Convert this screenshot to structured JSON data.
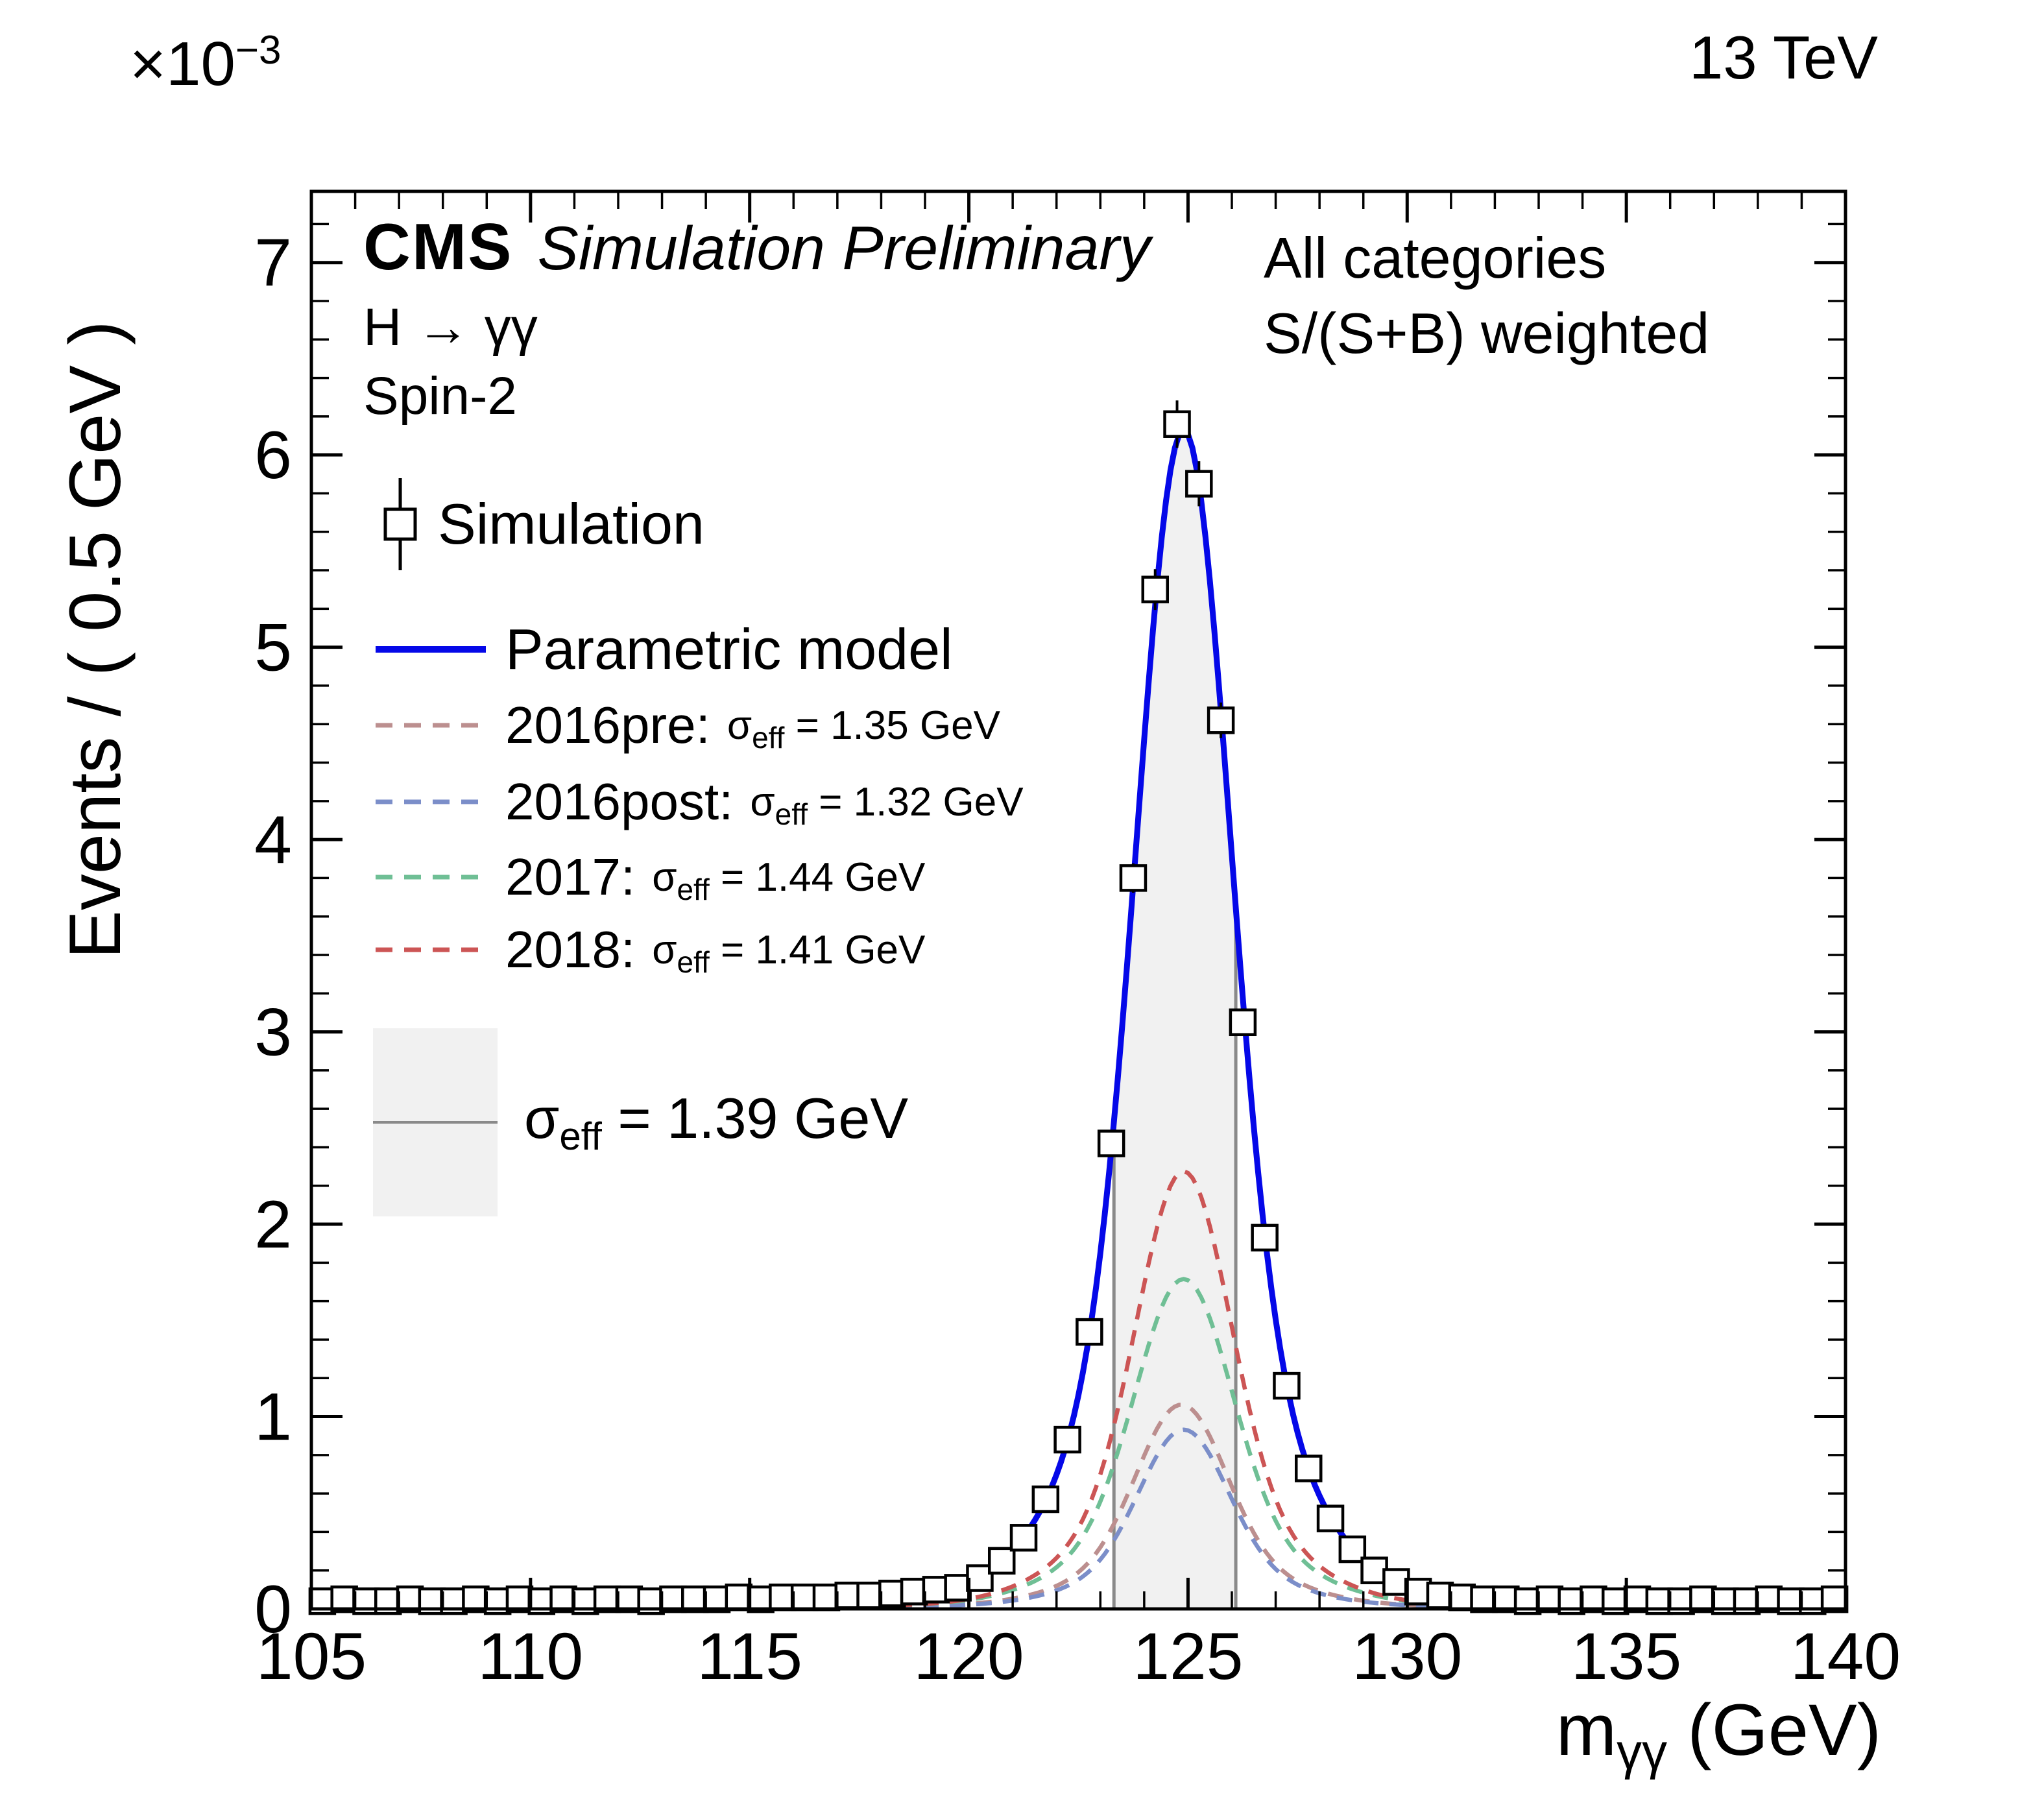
{
  "labels": {
    "energy": "13 TeV",
    "y_exp_base": "×10",
    "y_exp_sup": "−3",
    "y_axis_title": "Events / ( 0.5 GeV )",
    "x_title_main": "m",
    "x_title_sub": "γγ",
    "x_title_rest": " (GeV)",
    "cms": "CMS",
    "preliminary": "Simulation Preliminary",
    "process": "H → γγ",
    "spin": "Spin-2",
    "categories": "All categories",
    "weighted": "S/(S+B) weighted",
    "sigma": "σ",
    "eff": "eff"
  },
  "legend": {
    "position": "upper-left",
    "entries": [
      {
        "type": "marker",
        "label": "Simulation",
        "color": "#000000"
      },
      {
        "type": "line",
        "label": "Parametric model",
        "color": "#0508e8"
      },
      {
        "type": "dash",
        "label": "2016pre:",
        "color": "#bc8f8f",
        "sigma_text": " = 1.35 GeV"
      },
      {
        "type": "dash",
        "label": "2016post:",
        "color": "#7b8ec9",
        "sigma_text": " = 1.32 GeV"
      },
      {
        "type": "dash",
        "label": "2017:",
        "color": "#6fbf95",
        "sigma_text": " = 1.44 GeV"
      },
      {
        "type": "dash",
        "label": "2018:",
        "color": "#cc5555",
        "sigma_text": " = 1.41 GeV"
      },
      {
        "type": "band",
        "label": "",
        "color": "#f1f1f1",
        "sigma_text": " = 1.39 GeV"
      }
    ]
  },
  "chart_data": {
    "type": "line+scatter",
    "title": "",
    "xlabel": "m_γγ (GeV)",
    "ylabel": "Events / ( 0.5 GeV ), ×10⁻³",
    "xlim": [
      105,
      140
    ],
    "ylim": [
      0,
      7.37
    ],
    "x_ticks": [
      105,
      110,
      115,
      120,
      125,
      130,
      135,
      140
    ],
    "x_minor_step": 1,
    "y_ticks": [
      0,
      1,
      2,
      3,
      4,
      5,
      6,
      7
    ],
    "y_minor_step": 0.2,
    "grid": false,
    "band": {
      "x1": 123.31,
      "x2": 126.09,
      "fill": "#f1f1f1",
      "edge": "#8a8a8a",
      "sigma_eff_gev": 1.39
    },
    "curves": [
      {
        "name": "Parametric model",
        "style": "solid",
        "color": "#0508e8",
        "amplitude": 6.1,
        "mean": 124.9,
        "core_frac": 0.75,
        "core_sigma": 1.02,
        "wide_sigma": 2.1,
        "baseline": 0.03,
        "sigma_eff_gev": 1.39
      },
      {
        "name": "2016pre",
        "style": "dashed",
        "color": "#bc8f8f",
        "amplitude": 1.05,
        "mean": 124.85,
        "core_frac": 0.75,
        "core_sigma": 0.99,
        "wide_sigma": 2.0,
        "baseline": 0.012,
        "sigma_eff_gev": 1.35
      },
      {
        "name": "2016post",
        "style": "dashed",
        "color": "#7b8ec9",
        "amplitude": 0.92,
        "mean": 124.9,
        "core_frac": 0.75,
        "core_sigma": 0.97,
        "wide_sigma": 1.95,
        "baseline": 0.012,
        "sigma_eff_gev": 1.32
      },
      {
        "name": "2017",
        "style": "dashed",
        "color": "#6fbf95",
        "amplitude": 1.7,
        "mean": 124.9,
        "core_frac": 0.75,
        "core_sigma": 1.06,
        "wide_sigma": 2.15,
        "baseline": 0.015,
        "sigma_eff_gev": 1.44
      },
      {
        "name": "2018",
        "style": "dashed",
        "color": "#cc5555",
        "amplitude": 2.26,
        "mean": 124.9,
        "core_frac": 0.75,
        "core_sigma": 1.03,
        "wide_sigma": 2.1,
        "baseline": 0.015,
        "sigma_eff_gev": 1.41
      }
    ],
    "simulation_points": [
      [
        105.25,
        0.04
      ],
      [
        105.75,
        0.05
      ],
      [
        106.25,
        0.04
      ],
      [
        106.75,
        0.04
      ],
      [
        107.25,
        0.05
      ],
      [
        107.75,
        0.04
      ],
      [
        108.25,
        0.04
      ],
      [
        108.75,
        0.05
      ],
      [
        109.25,
        0.04
      ],
      [
        109.75,
        0.05
      ],
      [
        110.25,
        0.04
      ],
      [
        110.75,
        0.05
      ],
      [
        111.25,
        0.04
      ],
      [
        111.75,
        0.05
      ],
      [
        112.25,
        0.05
      ],
      [
        112.75,
        0.04
      ],
      [
        113.25,
        0.05
      ],
      [
        113.75,
        0.05
      ],
      [
        114.25,
        0.05
      ],
      [
        114.75,
        0.06
      ],
      [
        115.25,
        0.05
      ],
      [
        115.75,
        0.06
      ],
      [
        116.25,
        0.06
      ],
      [
        116.75,
        0.06
      ],
      [
        117.25,
        0.07
      ],
      [
        117.75,
        0.07
      ],
      [
        118.25,
        0.08
      ],
      [
        118.75,
        0.09
      ],
      [
        119.25,
        0.1
      ],
      [
        119.75,
        0.11
      ],
      [
        120.25,
        0.16
      ],
      [
        120.75,
        0.25
      ],
      [
        121.25,
        0.37
      ],
      [
        121.75,
        0.57
      ],
      [
        122.25,
        0.88
      ],
      [
        122.75,
        1.44
      ],
      [
        123.25,
        2.42
      ],
      [
        123.75,
        3.8
      ],
      [
        124.25,
        5.3
      ],
      [
        124.75,
        6.16
      ],
      [
        125.25,
        5.85
      ],
      [
        125.75,
        4.62
      ],
      [
        126.25,
        3.05
      ],
      [
        126.75,
        1.93
      ],
      [
        127.25,
        1.16
      ],
      [
        127.75,
        0.73
      ],
      [
        128.25,
        0.47
      ],
      [
        128.75,
        0.31
      ],
      [
        129.25,
        0.2
      ],
      [
        129.75,
        0.14
      ],
      [
        130.25,
        0.09
      ],
      [
        130.75,
        0.07
      ],
      [
        131.25,
        0.06
      ],
      [
        131.75,
        0.05
      ],
      [
        132.25,
        0.05
      ],
      [
        132.75,
        0.04
      ],
      [
        133.25,
        0.05
      ],
      [
        133.75,
        0.04
      ],
      [
        134.25,
        0.05
      ],
      [
        134.75,
        0.04
      ],
      [
        135.25,
        0.05
      ],
      [
        135.75,
        0.04
      ],
      [
        136.25,
        0.04
      ],
      [
        136.75,
        0.05
      ],
      [
        137.25,
        0.04
      ],
      [
        137.75,
        0.04
      ],
      [
        138.25,
        0.05
      ],
      [
        138.75,
        0.04
      ],
      [
        139.25,
        0.04
      ],
      [
        139.75,
        0.05
      ]
    ]
  }
}
